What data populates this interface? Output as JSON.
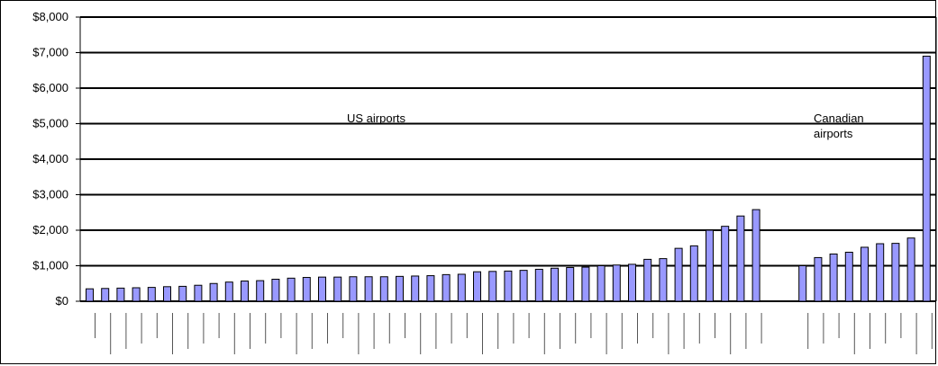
{
  "chart_data": {
    "type": "bar",
    "title": "",
    "xlabel": "",
    "ylabel": "",
    "ylim": [
      0,
      8000
    ],
    "y_ticks": [
      "$0",
      "$1,000",
      "$2,000",
      "$3,000",
      "$4,000",
      "$5,000",
      "$6,000",
      "$7,000",
      "$8,000"
    ],
    "grid": true,
    "legend": "none",
    "colors": {
      "bar_fill": "#9999ff",
      "bar_stroke": "#000000",
      "grid": "#000000"
    },
    "annotations": [
      {
        "text": "US airports"
      },
      {
        "text": "Canadian airports"
      }
    ],
    "groups": [
      {
        "name": "US airports",
        "values": [
          350,
          360,
          370,
          380,
          390,
          410,
          420,
          450,
          500,
          540,
          570,
          580,
          620,
          650,
          670,
          680,
          680,
          690,
          690,
          690,
          700,
          710,
          720,
          750,
          760,
          830,
          840,
          850,
          870,
          900,
          930,
          950,
          960,
          1000,
          1020,
          1040,
          1180,
          1200,
          1490,
          1560,
          2000,
          2110,
          2400,
          2580
        ]
      },
      {
        "name": "Canadian airports",
        "values": [
          1000,
          1230,
          1330,
          1380,
          1520,
          1620,
          1630,
          1780,
          6900
        ]
      }
    ]
  }
}
